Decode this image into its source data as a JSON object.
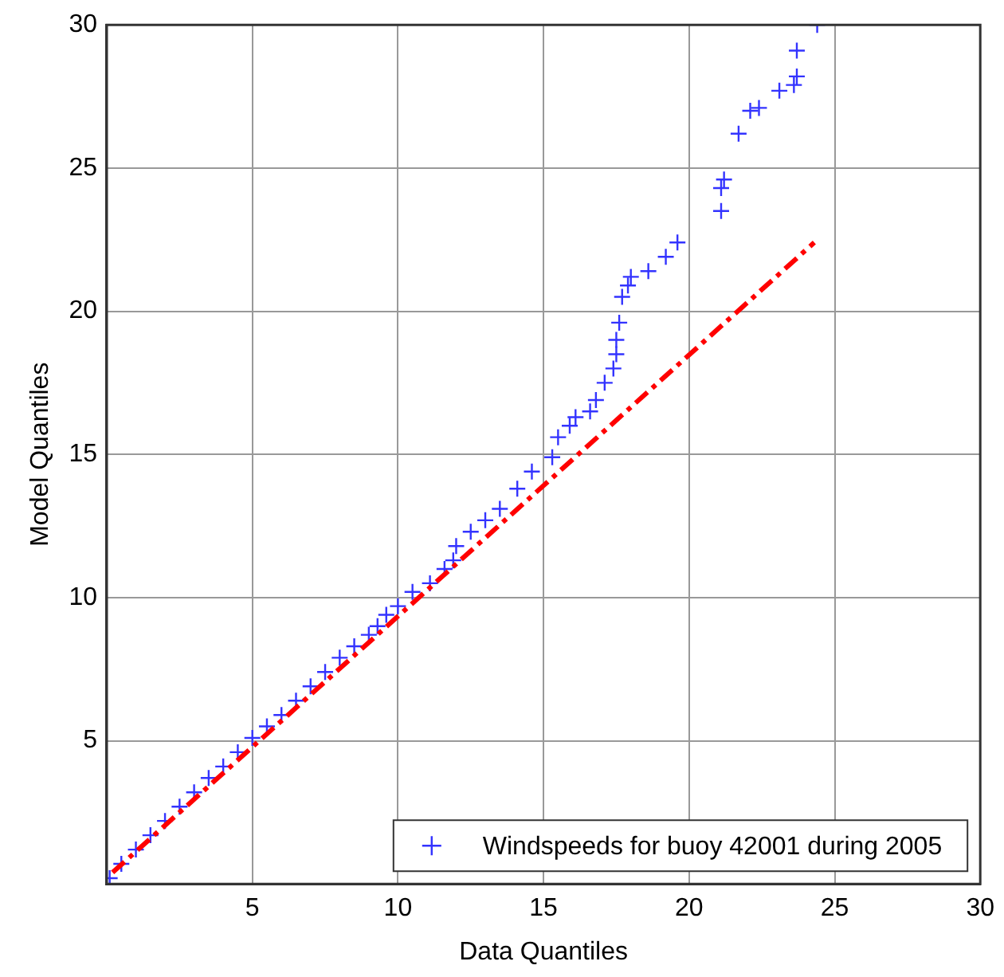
{
  "chart_data": {
    "type": "scatter",
    "xlabel": "Data Quantiles",
    "ylabel": "Model Quantiles",
    "xlim": [
      0,
      30
    ],
    "ylim": [
      0,
      30
    ],
    "xticks": [
      5,
      10,
      15,
      20,
      25,
      30
    ],
    "yticks": [
      5,
      10,
      15,
      20,
      25,
      30
    ],
    "grid": true,
    "legend": "bottom right",
    "marker": "cross",
    "series": [
      {
        "name": "Windspeeds for buoy 42001 during 2005",
        "color": "#3333ff",
        "x": [
          0.1,
          0.5,
          1,
          1.5,
          2,
          2.5,
          3,
          3.5,
          4,
          4.5,
          5,
          5.5,
          6,
          6.5,
          7,
          7.5,
          8,
          8.5,
          9,
          9.3,
          9.6,
          10,
          10.5,
          11.1,
          11.6,
          11.9,
          12,
          12.5,
          13,
          13.5,
          14.1,
          14.6,
          15.3,
          15.5,
          15.9,
          16.1,
          16.6,
          16.8,
          17.1,
          17.4,
          17.5,
          17.5,
          17.6,
          17.7,
          17.9,
          18,
          18.6,
          19.2,
          19.6,
          21.1,
          21.1,
          21.2,
          21.7,
          22.1,
          22.4,
          23.1,
          23.6,
          23.7,
          23.7,
          24.4
        ],
        "values": [
          0.2,
          0.7,
          1.2,
          1.7,
          2.2,
          2.7,
          3.2,
          3.7,
          4.1,
          4.6,
          5.1,
          5.5,
          5.9,
          6.4,
          6.9,
          7.4,
          7.9,
          8.3,
          8.7,
          9.0,
          9.4,
          9.7,
          10.2,
          10.5,
          11.0,
          11.3,
          11.8,
          12.3,
          12.7,
          13.1,
          13.8,
          14.4,
          14.9,
          15.6,
          16.0,
          16.3,
          16.5,
          16.9,
          17.5,
          18.0,
          18.5,
          19.0,
          19.6,
          20.5,
          20.9,
          21.2,
          21.4,
          21.9,
          22.4,
          23.5,
          24.3,
          24.6,
          26.2,
          27.0,
          27.1,
          27.7,
          27.9,
          28.2,
          29.1,
          30.0
        ]
      },
      {
        "type": "line",
        "color": "#ff0000",
        "line_style": "dashed",
        "marker": "none",
        "x": [
          0.2,
          24.3
        ],
        "values": [
          0.4,
          22.4
        ]
      }
    ]
  }
}
